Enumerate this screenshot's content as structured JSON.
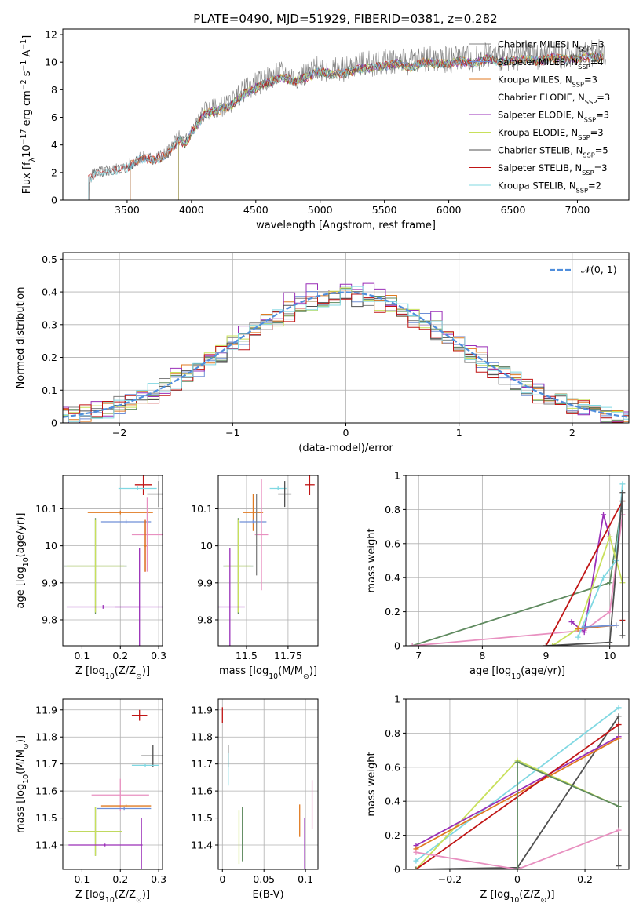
{
  "figure_title": "PLATE=0490, MJD=51929, FIBERID=0381, z=0.282",
  "colors": {
    "Chabrier MILES": "#7f7f7f",
    "Salpeter MILES": "#6f8fd6",
    "Kroupa MILES": "#e07a20",
    "Chabrier ELODIE": "#5f8a5f",
    "Salpeter ELODIE": "#9a2fb8",
    "Kroupa ELODIE": "#c8e05a",
    "Chabrier STELIB": "#505050",
    "Salpeter STELIB": "#c01515",
    "Kroupa STELIB": "#80d8e2",
    "Kroupa STELIB pink": "#e890c0",
    "normal": "#4f8edc"
  },
  "chart_data": [
    {
      "id": "spectrum",
      "type": "line",
      "title": "PLATE=0490, MJD=51929, FIBERID=0381, z=0.282",
      "xlabel": "wavelength [Angstrom, rest frame]",
      "ylabel": "Flux [f_λ10^-17 erg cm^-2 s^-1 A^-1]",
      "xlim": [
        3000,
        7400
      ],
      "ylim": [
        0,
        12.4
      ],
      "xticks": [
        3500,
        4000,
        4500,
        5000,
        5500,
        6000,
        6500,
        7000
      ],
      "yticks": [
        0,
        2,
        4,
        6,
        8,
        10,
        12
      ],
      "grid": false,
      "legend_position": "right",
      "legend": [
        {
          "label": "Chabrier MILES, N",
          "sub": "SSP",
          "tail": "=3"
        },
        {
          "label": "Salpeter MILES, N",
          "sub": "SSP",
          "tail": "=4"
        },
        {
          "label": "Kroupa MILES, N",
          "sub": "SSP",
          "tail": "=3"
        },
        {
          "label": "Chabrier ELODIE, N",
          "sub": "SSP",
          "tail": "=3"
        },
        {
          "label": "Salpeter ELODIE, N",
          "sub": "SSP",
          "tail": "=3"
        },
        {
          "label": "Kroupa ELODIE, N",
          "sub": "SSP",
          "tail": "=3"
        },
        {
          "label": "Chabrier STELIB, N",
          "sub": "SSP",
          "tail": "=5"
        },
        {
          "label": "Salpeter STELIB, N",
          "sub": "SSP",
          "tail": "=3"
        },
        {
          "label": "Kroupa STELIB, N",
          "sub": "SSP",
          "tail": "=2"
        }
      ],
      "data_envelope": {
        "x": [
          3200,
          3250,
          3400,
          3500,
          3600,
          3700,
          3800,
          3900,
          3950,
          4000,
          4100,
          4200,
          4300,
          4400,
          4500,
          4600,
          4700,
          4800,
          4900,
          5000,
          5100,
          5200,
          5300,
          5400,
          5500,
          5600,
          5700,
          5800,
          5900,
          6000,
          6100,
          6200,
          6300,
          6400,
          6500,
          6600,
          6700,
          6800,
          6900,
          7000,
          7100,
          7200
        ],
        "y": [
          1.5,
          2.0,
          2.2,
          2.4,
          3.1,
          3.0,
          3.3,
          4.5,
          4.2,
          5.0,
          6.4,
          6.7,
          7.0,
          7.9,
          8.4,
          8.8,
          9.2,
          8.9,
          9.2,
          9.6,
          9.4,
          9.5,
          9.8,
          9.9,
          10.0,
          10.2,
          9.9,
          10.3,
          10.2,
          10.2,
          10.4,
          10.2,
          10.6,
          10.3,
          10.4,
          10.5,
          10.4,
          10.6,
          10.5,
          10.6,
          10.7,
          10.7
        ]
      },
      "model_start_wavelengths": {
        "Chabrier MILES": 3525,
        "Salpeter MILES": 3525,
        "Kroupa MILES": 3525,
        "Chabrier ELODIE": 3900,
        "Salpeter ELODIE": 3900,
        "Kroupa ELODIE": 3900,
        "Chabrier STELIB": 3200,
        "Salpeter STELIB": 3200,
        "Kroupa STELIB": 3200
      }
    },
    {
      "id": "residuals",
      "type": "histogram",
      "xlabel": "(data-model)/error",
      "ylabel": "Normed distribution",
      "xlim": [
        -2.5,
        2.5
      ],
      "ylim": [
        0,
        0.52
      ],
      "xticks": [
        -2,
        -1,
        0,
        1,
        2
      ],
      "yticks": [
        0.0,
        0.1,
        0.2,
        0.3,
        0.4,
        0.5
      ],
      "grid": true,
      "legend_position": "top-right",
      "legend": [
        "𝒩(0, 1)"
      ],
      "bin_width": 0.1,
      "reference_curve": "normal pdf, mean 0, sigma 1",
      "series": [
        {
          "name": "Chabrier MILES",
          "peak": 0.39,
          "noise": 0.03,
          "seed": 3
        },
        {
          "name": "Salpeter MILES",
          "peak": 0.39,
          "noise": 0.03,
          "seed": 7
        },
        {
          "name": "Kroupa MILES",
          "peak": 0.4,
          "noise": 0.03,
          "seed": 11
        },
        {
          "name": "Chabrier ELODIE",
          "peak": 0.39,
          "noise": 0.025,
          "seed": 13
        },
        {
          "name": "Salpeter ELODIE",
          "peak": 0.42,
          "noise": 0.035,
          "seed": 17
        },
        {
          "name": "Kroupa ELODIE",
          "peak": 0.39,
          "noise": 0.03,
          "seed": 19
        },
        {
          "name": "Chabrier STELIB",
          "peak": 0.38,
          "noise": 0.025,
          "seed": 23
        },
        {
          "name": "Salpeter STELIB",
          "peak": 0.38,
          "noise": 0.03,
          "seed": 29
        },
        {
          "name": "Kroupa STELIB",
          "peak": 0.39,
          "noise": 0.03,
          "seed": 31
        }
      ]
    },
    {
      "id": "age-vs-Z",
      "type": "errorbar",
      "xlabel": "Z [log10(Z/Z☉)]",
      "ylabel": "age  [log10(age/yr)]",
      "xlim": [
        0.05,
        0.31
      ],
      "ylim": [
        9.73,
        10.19
      ],
      "xticks": [
        0.1,
        0.2,
        0.3
      ],
      "yticks": [
        9.8,
        9.9,
        10.0,
        10.1
      ],
      "grid": true,
      "points": [
        {
          "series": "Salpeter STELIB",
          "x": 0.26,
          "y": 10.165,
          "xerr": 0.022,
          "yerr": 0.028
        },
        {
          "series": "Kroupa STELIB",
          "x": 0.245,
          "y": 10.155,
          "xerr": 0.05,
          "yerr": 0.005
        },
        {
          "series": "Chabrier STELIB",
          "x": 0.3,
          "y": 10.14,
          "xerr": 0.03,
          "yerr": 0.035
        },
        {
          "series": "Kroupa MILES",
          "x": 0.2,
          "y": 10.09,
          "xerr": 0.085,
          "yerr": 0.005
        },
        {
          "series": "Salpeter MILES",
          "x": 0.215,
          "y": 10.065,
          "xerr": 0.065,
          "yerr": 0.005
        },
        {
          "series": "Kroupa STELIB pink",
          "x": 0.27,
          "y": 10.03,
          "xerr": 0.04,
          "yerr": 0.1
        },
        {
          "series": "Chabrier ELODIE",
          "x": 0.135,
          "y": 9.945,
          "xerr": 0.082,
          "yerr": 0.13
        },
        {
          "series": "Kroupa ELODIE",
          "x": 0.135,
          "y": 9.945,
          "xerr": 0.075,
          "yerr": 0.125
        },
        {
          "series": "Salpeter ELODIE",
          "x": 0.25,
          "y": 9.835,
          "xerr": 0.065,
          "yerr": 0.16
        },
        {
          "series": "Salpeter ELODIE",
          "x": 0.155,
          "y": 9.835,
          "xerr": 0.095,
          "yerr": 0.005
        },
        {
          "series": "Salpeter STELIB",
          "x": 0.265,
          "y": 10.0,
          "xerr": 0.003,
          "yerr": 0.07
        },
        {
          "series": "Kroupa MILES",
          "x": 0.265,
          "y": 10.0,
          "xerr": 0.003,
          "yerr": 0.07
        }
      ]
    },
    {
      "id": "age-vs-mass",
      "type": "errorbar",
      "xlabel": "mass [log10(M/M☉)]",
      "ylabel": "",
      "xlim": [
        11.33,
        11.93
      ],
      "ylim": [
        9.73,
        10.19
      ],
      "xticks": [
        11.5,
        11.75
      ],
      "yticks": [
        9.8,
        9.9,
        10.0,
        10.1
      ],
      "grid": true,
      "points": [
        {
          "series": "Salpeter STELIB",
          "x": 11.88,
          "y": 10.165,
          "xerr": 0.03,
          "yerr": 0.028
        },
        {
          "series": "Kroupa STELIB",
          "x": 11.69,
          "y": 10.155,
          "xerr": 0.05,
          "yerr": 0.005
        },
        {
          "series": "Chabrier STELIB",
          "x": 11.73,
          "y": 10.14,
          "xerr": 0.04,
          "yerr": 0.035
        },
        {
          "series": "Kroupa MILES",
          "x": 11.54,
          "y": 10.09,
          "xerr": 0.06,
          "yerr": 0.05
        },
        {
          "series": "Salpeter MILES",
          "x": 11.54,
          "y": 10.065,
          "xerr": 0.08,
          "yerr": 0.005
        },
        {
          "series": "Kroupa STELIB pink",
          "x": 11.59,
          "y": 10.03,
          "xerr": 0.04,
          "yerr": 0.15
        },
        {
          "series": "Chabrier ELODIE",
          "x": 11.45,
          "y": 9.945,
          "xerr": 0.09,
          "yerr": 0.13
        },
        {
          "series": "Kroupa ELODIE",
          "x": 11.45,
          "y": 9.945,
          "xerr": 0.075,
          "yerr": 0.125
        },
        {
          "series": "Salpeter ELODIE",
          "x": 11.4,
          "y": 9.835,
          "xerr": 0.09,
          "yerr": 0.16
        },
        {
          "series": "Chabrier MILES",
          "x": 11.56,
          "y": 10.03,
          "xerr": 0.003,
          "yerr": 0.11
        }
      ]
    },
    {
      "id": "mass-weight-vs-age",
      "type": "line",
      "xlabel": "age  [log10(age/yr)]",
      "ylabel": "mass weight",
      "xlim": [
        6.8,
        10.3
      ],
      "ylim": [
        0,
        1.0
      ],
      "xticks": [
        7,
        8,
        9,
        10
      ],
      "yticks": [
        0.0,
        0.2,
        0.4,
        0.6,
        0.8,
        1.0
      ],
      "grid": true,
      "series": [
        {
          "name": "Chabrier ELODIE",
          "x": [
            6.9,
            10.0,
            10.2
          ],
          "y": [
            0.0,
            0.37,
            0.85
          ]
        },
        {
          "name": "Kroupa STELIB pink",
          "x": [
            6.9,
            9.6,
            10.0,
            10.2
          ],
          "y": [
            0.0,
            0.09,
            0.2,
            0.77
          ]
        },
        {
          "name": "Salpeter ELODIE",
          "x": [
            9.4,
            9.6,
            9.9,
            10.0
          ],
          "y": [
            0.14,
            0.08,
            0.77,
            0.64
          ]
        },
        {
          "name": "Kroupa ELODIE",
          "x": [
            9.1,
            9.5,
            10.0,
            10.2
          ],
          "y": [
            0.0,
            0.1,
            0.64,
            0.37
          ]
        },
        {
          "name": "Kroupa STELIB",
          "x": [
            9.5,
            9.9,
            10.1,
            10.2
          ],
          "y": [
            0.05,
            0.4,
            0.5,
            0.95
          ]
        },
        {
          "name": "Salpeter STELIB",
          "x": [
            9.0,
            10.2,
            10.2
          ],
          "y": [
            0.0,
            0.85,
            0.15
          ]
        },
        {
          "name": "Chabrier STELIB",
          "x": [
            9.0,
            10.0,
            10.2,
            10.2
          ],
          "y": [
            0.0,
            0.02,
            0.9,
            0.06
          ]
        },
        {
          "name": "Kroupa MILES",
          "x": [
            9.5,
            10.1
          ],
          "y": [
            0.1,
            0.12
          ]
        },
        {
          "name": "Salpeter MILES",
          "x": [
            9.6,
            10.1
          ],
          "y": [
            0.11,
            0.12
          ]
        }
      ]
    },
    {
      "id": "mass-vs-Z",
      "type": "errorbar",
      "xlabel": "Z [log10(Z/Z☉)]",
      "ylabel": "mass [log10(M/M☉)]",
      "xlim": [
        0.05,
        0.31
      ],
      "ylim": [
        11.31,
        11.94
      ],
      "xticks": [
        0.1,
        0.2,
        0.3
      ],
      "yticks": [
        11.4,
        11.5,
        11.6,
        11.7,
        11.8,
        11.9
      ],
      "grid": true,
      "points": [
        {
          "series": "Salpeter STELIB",
          "x": 0.25,
          "y": 11.88,
          "xerr": 0.02,
          "yerr": 0.02
        },
        {
          "series": "Chabrier STELIB",
          "x": 0.285,
          "y": 11.73,
          "xerr": 0.03,
          "yerr": 0.04
        },
        {
          "series": "Kroupa STELIB",
          "x": 0.265,
          "y": 11.695,
          "xerr": 0.035,
          "yerr": 0.005
        },
        {
          "series": "Kroupa STELIB pink",
          "x": 0.2,
          "y": 11.585,
          "xerr": 0.075,
          "yerr": 0.06
        },
        {
          "series": "Kroupa MILES",
          "x": 0.215,
          "y": 11.545,
          "xerr": 0.065,
          "yerr": 0.005
        },
        {
          "series": "Salpeter MILES",
          "x": 0.21,
          "y": 11.535,
          "xerr": 0.07,
          "yerr": 0.005
        },
        {
          "series": "Chabrier ELODIE",
          "x": 0.135,
          "y": 11.45,
          "xerr": 0.07,
          "yerr": 0.09
        },
        {
          "series": "Kroupa ELODIE",
          "x": 0.135,
          "y": 11.45,
          "xerr": 0.07,
          "yerr": 0.09
        },
        {
          "series": "Salpeter ELODIE",
          "x": 0.16,
          "y": 11.4,
          "xerr": 0.095,
          "yerr": 0.005
        },
        {
          "series": "Salpeter ELODIE",
          "x": 0.255,
          "y": 11.4,
          "xerr": 0.003,
          "yerr": 0.1
        }
      ]
    },
    {
      "id": "mass-vs-EBV",
      "type": "errorbar",
      "xlabel": "E(B-V)",
      "ylabel": "",
      "xlim": [
        -0.005,
        0.115
      ],
      "ylim": [
        11.31,
        11.94
      ],
      "xticks": [
        0.0,
        0.05,
        0.1
      ],
      "yticks": [
        11.4,
        11.5,
        11.6,
        11.7,
        11.8,
        11.9
      ],
      "grid": true,
      "points": [
        {
          "series": "Salpeter STELIB",
          "x": 0.0,
          "y": 11.88,
          "xerr": 0.0,
          "yerr": 0.03
        },
        {
          "series": "Chabrier STELIB",
          "x": 0.007,
          "y": 11.73,
          "xerr": 0.0,
          "yerr": 0.04
        },
        {
          "series": "Kroupa STELIB",
          "x": 0.007,
          "y": 11.68,
          "xerr": 0.0,
          "yerr": 0.06
        },
        {
          "series": "Kroupa ELODIE",
          "x": 0.02,
          "y": 11.43,
          "xerr": 0.0,
          "yerr": 0.1
        },
        {
          "series": "Chabrier ELODIE",
          "x": 0.024,
          "y": 11.44,
          "xerr": 0.0,
          "yerr": 0.1
        },
        {
          "series": "Kroupa MILES",
          "x": 0.093,
          "y": 11.49,
          "xerr": 0.0,
          "yerr": 0.06
        },
        {
          "series": "Salpeter ELODIE",
          "x": 0.099,
          "y": 11.4,
          "xerr": 0.0,
          "yerr": 0.1
        },
        {
          "series": "Kroupa STELIB pink",
          "x": 0.108,
          "y": 11.55,
          "xerr": 0.0,
          "yerr": 0.09
        }
      ]
    },
    {
      "id": "mass-weight-vs-Z",
      "type": "line",
      "xlabel": "Z [log10(Z/Z☉)]",
      "ylabel": "mass weight",
      "xlim": [
        -0.33,
        0.33
      ],
      "ylim": [
        0,
        1.0
      ],
      "xticks": [
        -0.2,
        0.0,
        0.2
      ],
      "yticks": [
        0.0,
        0.2,
        0.4,
        0.6,
        0.8,
        1.0
      ],
      "grid": true,
      "series": [
        {
          "name": "Kroupa STELIB",
          "x": [
            -0.3,
            0.3
          ],
          "y": [
            0.05,
            0.95
          ]
        },
        {
          "name": "Kroupa ELODIE",
          "x": [
            -0.3,
            0.0,
            0.3
          ],
          "y": [
            0.0,
            0.64,
            0.37
          ]
        },
        {
          "name": "Chabrier STELIB",
          "x": [
            -0.3,
            0.0,
            0.3,
            0.3
          ],
          "y": [
            0.0,
            0.01,
            0.9,
            0.02
          ]
        },
        {
          "name": "Salpeter ELODIE",
          "x": [
            -0.3,
            0.3
          ],
          "y": [
            0.14,
            0.78
          ]
        },
        {
          "name": "Kroupa MILES",
          "x": [
            -0.3,
            0.3
          ],
          "y": [
            0.12,
            0.77
          ]
        },
        {
          "name": "Salpeter STELIB",
          "x": [
            -0.3,
            0.3
          ],
          "y": [
            0.0,
            0.85
          ]
        },
        {
          "name": "Kroupa STELIB pink",
          "x": [
            -0.3,
            0.0,
            0.3
          ],
          "y": [
            0.1,
            0.0,
            0.23
          ]
        },
        {
          "name": "Chabrier ELODIE",
          "x": [
            -0.3,
            0.0,
            0.0,
            0.3
          ],
          "y": [
            0.0,
            0.0,
            0.63,
            0.37
          ]
        }
      ]
    }
  ]
}
